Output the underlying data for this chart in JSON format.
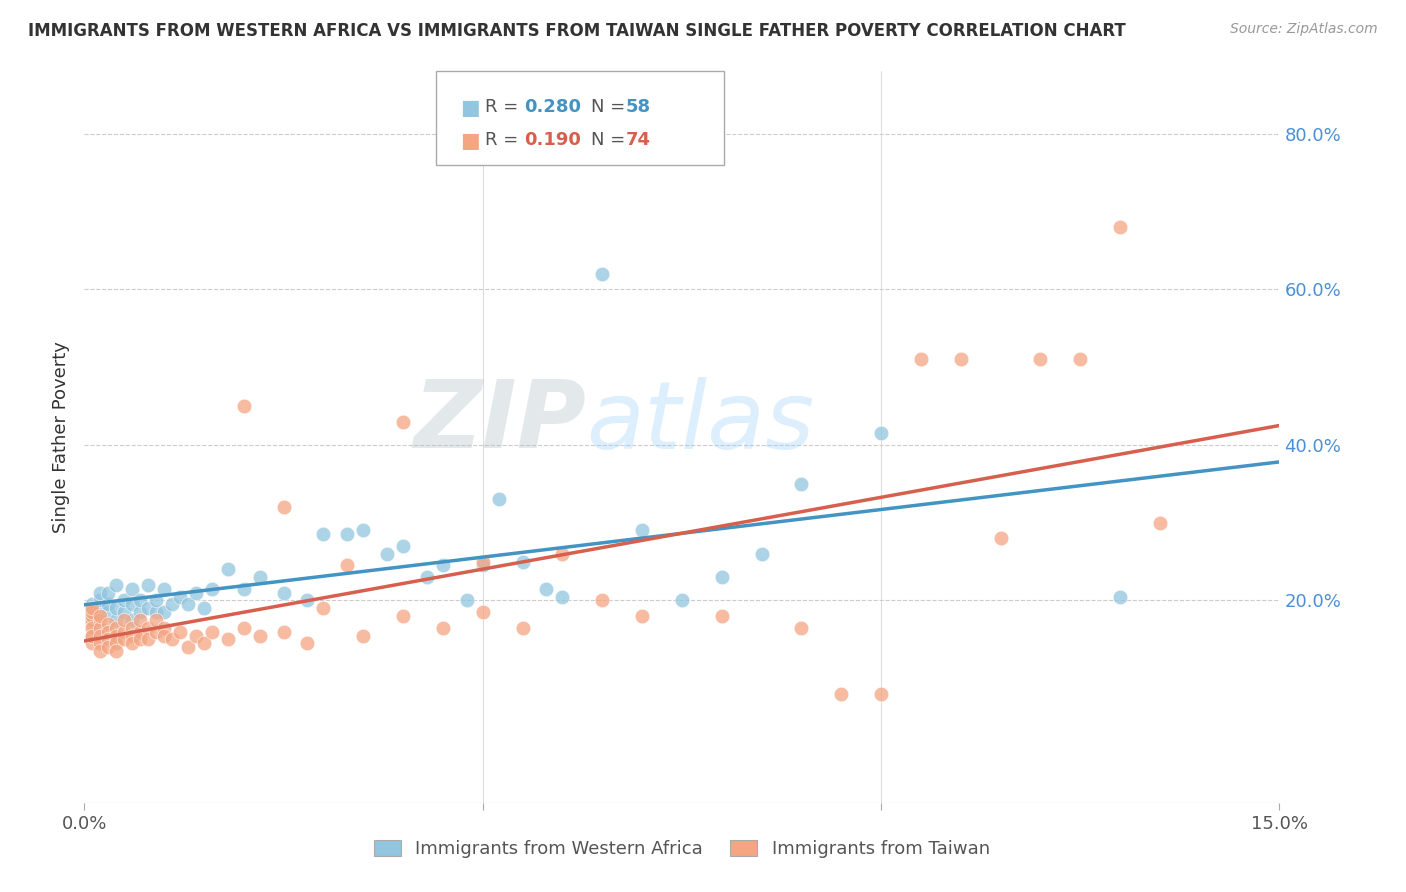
{
  "title": "IMMIGRANTS FROM WESTERN AFRICA VS IMMIGRANTS FROM TAIWAN SINGLE FATHER POVERTY CORRELATION CHART",
  "source": "Source: ZipAtlas.com",
  "ylabel": "Single Father Poverty",
  "right_yticks": [
    "80.0%",
    "60.0%",
    "40.0%",
    "20.0%"
  ],
  "right_ytick_vals": [
    0.8,
    0.6,
    0.4,
    0.2
  ],
  "xlim": [
    0.0,
    0.15
  ],
  "ylim": [
    -0.06,
    0.88
  ],
  "label_blue": "Immigrants from Western Africa",
  "label_pink": "Immigrants from Taiwan",
  "blue_color": "#92c5de",
  "pink_color": "#f4a582",
  "blue_line_color": "#4393c3",
  "pink_line_color": "#d6604d",
  "watermark_zip": "ZIP",
  "watermark_atlas": "atlas",
  "blue_x": [
    0.001,
    0.001,
    0.001,
    0.002,
    0.002,
    0.002,
    0.002,
    0.003,
    0.003,
    0.003,
    0.004,
    0.004,
    0.004,
    0.005,
    0.005,
    0.006,
    0.006,
    0.006,
    0.007,
    0.007,
    0.008,
    0.008,
    0.009,
    0.009,
    0.01,
    0.01,
    0.011,
    0.012,
    0.013,
    0.014,
    0.015,
    0.016,
    0.018,
    0.02,
    0.022,
    0.025,
    0.028,
    0.03,
    0.033,
    0.035,
    0.038,
    0.04,
    0.043,
    0.045,
    0.048,
    0.05,
    0.052,
    0.055,
    0.058,
    0.06,
    0.065,
    0.07,
    0.075,
    0.08,
    0.085,
    0.09,
    0.1,
    0.13
  ],
  "blue_y": [
    0.175,
    0.185,
    0.195,
    0.18,
    0.19,
    0.2,
    0.21,
    0.185,
    0.195,
    0.21,
    0.175,
    0.19,
    0.22,
    0.185,
    0.2,
    0.175,
    0.195,
    0.215,
    0.185,
    0.2,
    0.19,
    0.22,
    0.185,
    0.2,
    0.185,
    0.215,
    0.195,
    0.205,
    0.195,
    0.21,
    0.19,
    0.215,
    0.24,
    0.215,
    0.23,
    0.21,
    0.2,
    0.285,
    0.285,
    0.29,
    0.26,
    0.27,
    0.23,
    0.245,
    0.2,
    0.245,
    0.33,
    0.25,
    0.215,
    0.205,
    0.62,
    0.29,
    0.2,
    0.23,
    0.26,
    0.35,
    0.415,
    0.205
  ],
  "pink_x": [
    0.001,
    0.001,
    0.001,
    0.001,
    0.001,
    0.001,
    0.001,
    0.001,
    0.001,
    0.002,
    0.002,
    0.002,
    0.002,
    0.002,
    0.002,
    0.003,
    0.003,
    0.003,
    0.003,
    0.004,
    0.004,
    0.004,
    0.004,
    0.005,
    0.005,
    0.005,
    0.006,
    0.006,
    0.006,
    0.007,
    0.007,
    0.007,
    0.008,
    0.008,
    0.009,
    0.009,
    0.01,
    0.01,
    0.011,
    0.012,
    0.013,
    0.014,
    0.015,
    0.016,
    0.018,
    0.02,
    0.022,
    0.025,
    0.028,
    0.03,
    0.033,
    0.035,
    0.04,
    0.045,
    0.05,
    0.055,
    0.06,
    0.065,
    0.07,
    0.08,
    0.09,
    0.095,
    0.1,
    0.105,
    0.11,
    0.115,
    0.12,
    0.125,
    0.13,
    0.135,
    0.02,
    0.025,
    0.04,
    0.05
  ],
  "pink_y": [
    0.17,
    0.175,
    0.18,
    0.185,
    0.19,
    0.155,
    0.165,
    0.145,
    0.155,
    0.175,
    0.165,
    0.155,
    0.145,
    0.135,
    0.18,
    0.17,
    0.16,
    0.15,
    0.14,
    0.165,
    0.155,
    0.145,
    0.135,
    0.16,
    0.15,
    0.175,
    0.165,
    0.155,
    0.145,
    0.16,
    0.15,
    0.175,
    0.165,
    0.15,
    0.16,
    0.175,
    0.165,
    0.155,
    0.15,
    0.16,
    0.14,
    0.155,
    0.145,
    0.16,
    0.15,
    0.165,
    0.155,
    0.16,
    0.145,
    0.19,
    0.245,
    0.155,
    0.18,
    0.165,
    0.185,
    0.165,
    0.26,
    0.2,
    0.18,
    0.18,
    0.165,
    0.08,
    0.08,
    0.51,
    0.51,
    0.28,
    0.51,
    0.51,
    0.68,
    0.3,
    0.45,
    0.32,
    0.43,
    0.25
  ]
}
